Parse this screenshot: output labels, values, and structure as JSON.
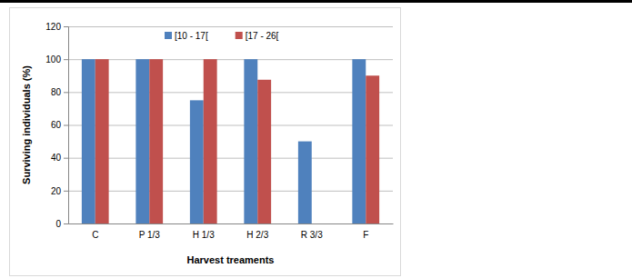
{
  "chart_data": {
    "type": "bar",
    "x_label": "Harvest treaments",
    "y_label": "Surviving individuals (%)",
    "categories": [
      "C",
      "P 1/3",
      "H 1/3",
      "H 2/3",
      "R 3/3",
      "F"
    ],
    "series": [
      {
        "name": "[10 - 17[",
        "color": "#4f81bd",
        "values": [
          100,
          100,
          75,
          100,
          50,
          100
        ]
      },
      {
        "name": "[17 - 26[",
        "color": "#c0504d",
        "values": [
          100,
          100,
          100,
          87.5,
          0,
          90
        ]
      }
    ],
    "ylim": [
      0,
      120
    ],
    "yticks": [
      0,
      20,
      40,
      60,
      80,
      100,
      120
    ],
    "grid": true,
    "legend": "top"
  }
}
